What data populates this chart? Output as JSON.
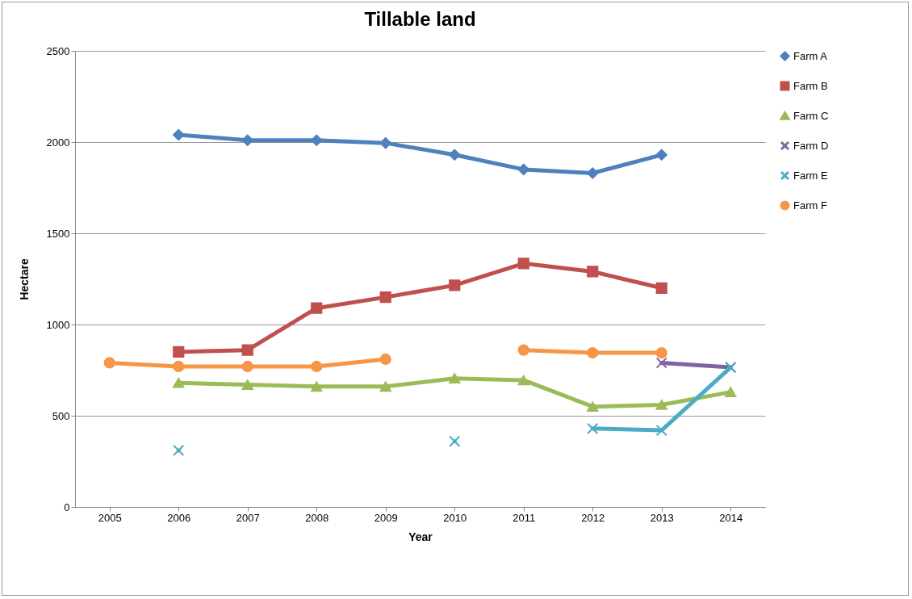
{
  "chart_data": {
    "type": "line",
    "title": "Tillable land",
    "xlabel": "Year",
    "ylabel": "Hectare",
    "categories": [
      "2005",
      "2006",
      "2007",
      "2008",
      "2009",
      "2010",
      "2011",
      "2012",
      "2013",
      "2014"
    ],
    "series": [
      {
        "name": "Farm A",
        "color": "#4f81bd",
        "marker": "diamond",
        "values": [
          null,
          2040,
          2010,
          2010,
          1995,
          1930,
          1850,
          1830,
          1930,
          null
        ]
      },
      {
        "name": "Farm B",
        "color": "#c0504d",
        "marker": "square",
        "values": [
          null,
          850,
          860,
          1090,
          1150,
          1215,
          1335,
          1290,
          1200,
          null
        ]
      },
      {
        "name": "Farm C",
        "color": "#9bbb59",
        "marker": "triangle",
        "values": [
          null,
          680,
          670,
          660,
          660,
          705,
          695,
          550,
          560,
          630
        ]
      },
      {
        "name": "Farm D",
        "color": "#8064a2",
        "marker": "cross",
        "values": [
          null,
          null,
          null,
          null,
          null,
          null,
          null,
          null,
          790,
          765
        ]
      },
      {
        "name": "Farm E",
        "color": "#4bacc6",
        "marker": "cross",
        "values": [
          null,
          310,
          null,
          null,
          null,
          360,
          null,
          430,
          420,
          765
        ]
      },
      {
        "name": "Farm F",
        "color": "#f79646",
        "marker": "circle",
        "values": [
          790,
          770,
          770,
          770,
          810,
          null,
          860,
          845,
          845,
          null
        ]
      }
    ],
    "ylim": [
      0,
      2500
    ],
    "yticks": [
      0,
      500,
      1000,
      1500,
      2000,
      2500
    ],
    "grid": "y",
    "legend": "right",
    "line_style": "solid"
  }
}
